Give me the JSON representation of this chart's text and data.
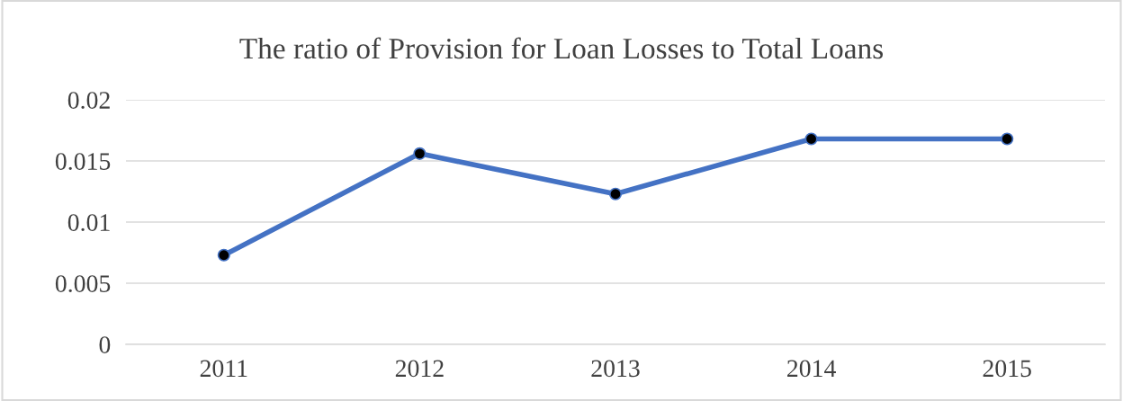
{
  "chart_data": {
    "type": "line",
    "title": "The ratio of Provision for Loan Losses to Total Loans",
    "categories": [
      "2011",
      "2012",
      "2013",
      "2014",
      "2015"
    ],
    "series": [
      {
        "color": "#4472c4",
        "values": [
          0.0073,
          0.0156,
          0.0123,
          0.0168,
          0.0168
        ]
      }
    ],
    "ylim": [
      0,
      0.02
    ],
    "yticks": [
      0,
      0.005,
      0.01,
      0.015,
      0.02
    ],
    "grid": "y",
    "marker": "circle",
    "legend": false
  }
}
